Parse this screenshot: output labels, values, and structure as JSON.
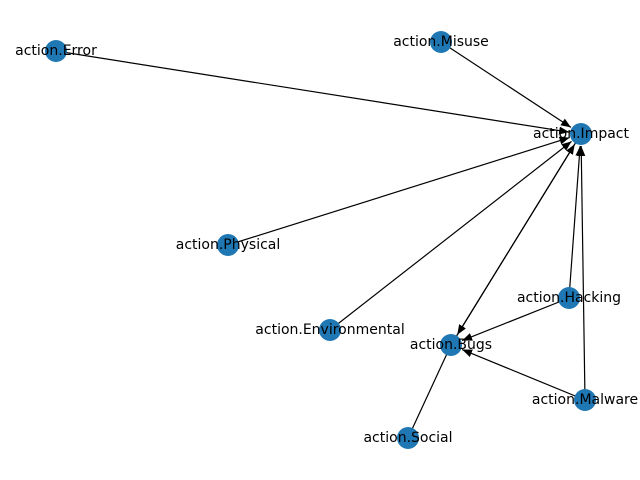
{
  "graph": {
    "node_color": "#1f77b4",
    "edge_color": "#000000",
    "nodes": [
      {
        "id": "error",
        "label": "action.Error"
      },
      {
        "id": "misuse",
        "label": "action.Misuse"
      },
      {
        "id": "impact",
        "label": "action.Impact"
      },
      {
        "id": "physical",
        "label": "action.Physical"
      },
      {
        "id": "hacking",
        "label": "action.Hacking"
      },
      {
        "id": "environmental",
        "label": "action.Environmental"
      },
      {
        "id": "bugs",
        "label": "action.Bugs"
      },
      {
        "id": "malware",
        "label": "action.Malware"
      },
      {
        "id": "social",
        "label": "action.Social"
      }
    ],
    "edges": [
      {
        "from": "error",
        "to": "impact",
        "arrow": true
      },
      {
        "from": "misuse",
        "to": "impact",
        "arrow": true
      },
      {
        "from": "physical",
        "to": "impact",
        "arrow": true
      },
      {
        "from": "environmental",
        "to": "impact",
        "arrow": true
      },
      {
        "from": "bugs",
        "to": "impact",
        "arrow": true
      },
      {
        "from": "impact",
        "to": "bugs",
        "arrow": true
      },
      {
        "from": "hacking",
        "to": "impact",
        "arrow": true
      },
      {
        "from": "malware",
        "to": "impact",
        "arrow": true
      },
      {
        "from": "hacking",
        "to": "bugs",
        "arrow": true
      },
      {
        "from": "malware",
        "to": "bugs",
        "arrow": true
      },
      {
        "from": "social",
        "to": "bugs",
        "arrow": false
      }
    ]
  }
}
